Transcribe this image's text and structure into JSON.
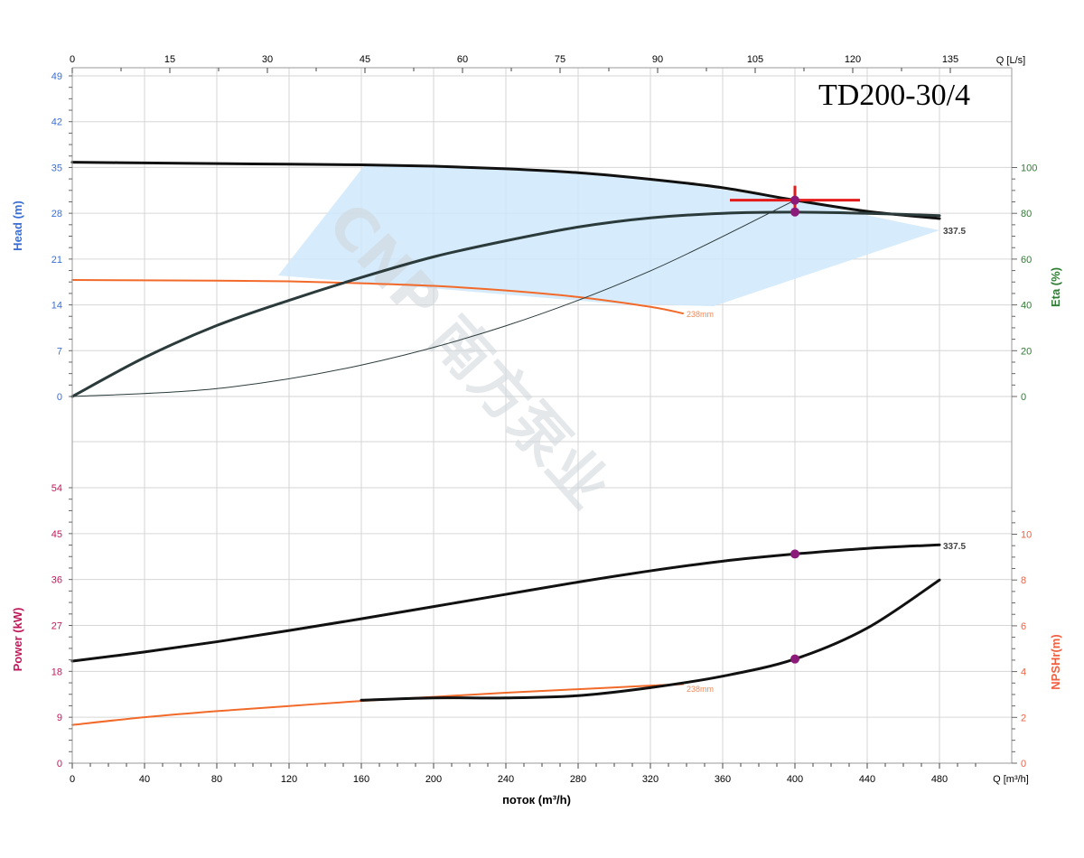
{
  "model_title": "TD200-30/4",
  "colors": {
    "head_axis": "#3a6fd8",
    "eta_axis": "#2e7d32",
    "power_axis": "#c2185b",
    "npsh_axis": "#f06040",
    "curve": "#111111",
    "orange_curve": "#f26a2a",
    "efficiency_line": "#2b3a3a",
    "area_fill": "#cfe8fa",
    "duty_marker": "#e41b1b",
    "point_marker": "#8b1a7a",
    "watermark": "#cfd6db"
  },
  "watermark_text": "CNP 南方泵业",
  "chart_data": [
    {
      "type": "line",
      "panel": "upper",
      "x_top": {
        "label": "Q [L/s]",
        "ticks": [
          0,
          15,
          30,
          45,
          60,
          75,
          90,
          105,
          120,
          135
        ]
      },
      "y_left": {
        "label": "Head (m)",
        "ticks": [
          0,
          7,
          14,
          21,
          28,
          35,
          42,
          49
        ],
        "ylim": [
          0,
          49
        ]
      },
      "y_right": {
        "label": "Eta (%)",
        "ticks": [
          0,
          20,
          40,
          60,
          80,
          100
        ],
        "ylim": [
          0,
          100
        ]
      },
      "xlim": [
        0,
        480
      ],
      "series": [
        {
          "role": "head-337.5",
          "label": "337.5",
          "axis": "head",
          "x": [
            0,
            40,
            80,
            120,
            160,
            200,
            240,
            280,
            320,
            360,
            400,
            440,
            480
          ],
          "y": [
            35.8,
            35.7,
            35.6,
            35.5,
            35.4,
            35.2,
            34.8,
            34.2,
            33.2,
            31.9,
            30.0,
            28.3,
            27.2
          ]
        },
        {
          "role": "head-238",
          "label": "238mm",
          "axis": "head",
          "x": [
            0,
            40,
            80,
            120,
            160,
            200,
            240,
            280,
            320,
            338
          ],
          "y": [
            17.8,
            17.75,
            17.7,
            17.6,
            17.3,
            16.9,
            16.2,
            15.2,
            13.7,
            12.7
          ]
        },
        {
          "role": "efficiency",
          "axis": "eta",
          "x": [
            0,
            40,
            80,
            120,
            160,
            200,
            240,
            280,
            320,
            360,
            400,
            440,
            480
          ],
          "y": [
            0,
            17,
            31,
            42,
            52,
            61,
            68,
            74,
            78,
            80,
            80.5,
            80,
            79
          ]
        },
        {
          "role": "system-curve",
          "axis": "head",
          "x": [
            0,
            80,
            160,
            240,
            320,
            400
          ],
          "y": [
            0,
            1.2,
            4.8,
            10.8,
            19.2,
            30.0
          ]
        }
      ],
      "operating_area": {
        "x": [
          114,
          160,
          240,
          320,
          400,
          480,
          360,
          160
        ],
        "y": [
          18.5,
          35.4,
          34.8,
          33.2,
          30.0,
          25.4,
          13.8,
          35.4
        ],
        "polygon": [
          [
            114,
            18.5
          ],
          [
            162,
            35.4
          ],
          [
            240,
            34.8
          ],
          [
            320,
            33.2
          ],
          [
            400,
            30.0
          ],
          [
            480,
            25.4
          ],
          [
            355,
            13.8
          ],
          [
            300,
            14.2
          ]
        ]
      },
      "duty_point": {
        "x": 400,
        "head": 30.0,
        "eta_head_equiv": 28.2
      },
      "labels": {
        "head_337": "337.5",
        "head_238": "238mm"
      }
    },
    {
      "type": "line",
      "panel": "lower",
      "x_bottom": {
        "label": "Q [m³/h]",
        "ticks": [
          0,
          40,
          80,
          120,
          160,
          200,
          240,
          280,
          320,
          360,
          400,
          440,
          480
        ]
      },
      "xlabel": "поток (m³/h)",
      "y_left": {
        "label": "Power (kW)",
        "ticks": [
          0,
          9,
          18,
          27,
          36,
          45,
          54
        ],
        "ylim": [
          0,
          54
        ]
      },
      "y_right": {
        "label": "NPSHr(m)",
        "ticks": [
          0,
          2,
          4,
          6,
          8,
          10
        ],
        "ylim": [
          0,
          12
        ]
      },
      "xlim": [
        0,
        480
      ],
      "series": [
        {
          "role": "power-337.5",
          "label": "337.5",
          "axis": "power",
          "x": [
            0,
            40,
            80,
            120,
            160,
            200,
            240,
            280,
            320,
            360,
            400,
            440,
            480
          ],
          "y": [
            20.0,
            21.8,
            23.8,
            26.0,
            28.3,
            30.7,
            33.1,
            35.5,
            37.7,
            39.6,
            41.0,
            42.1,
            42.8
          ]
        },
        {
          "role": "power-238",
          "label": "238mm",
          "axis": "power",
          "x": [
            0,
            40,
            80,
            120,
            160,
            200,
            240,
            280,
            320,
            338
          ],
          "y": [
            7.5,
            9.0,
            10.2,
            11.2,
            12.2,
            13.0,
            13.8,
            14.5,
            15.2,
            15.5
          ]
        },
        {
          "role": "npshr",
          "axis": "npsh",
          "x": [
            160,
            200,
            240,
            280,
            320,
            360,
            400,
            440,
            480
          ],
          "y": [
            2.75,
            2.85,
            2.85,
            2.95,
            3.3,
            3.8,
            4.55,
            5.9,
            8.0
          ]
        }
      ],
      "points": {
        "power_at_duty": {
          "x": 400,
          "y": 41.0
        },
        "npsh_at_duty": {
          "x": 400,
          "y": 4.55
        }
      },
      "labels": {
        "power_337": "337.5",
        "power_238": "238mm"
      }
    }
  ]
}
